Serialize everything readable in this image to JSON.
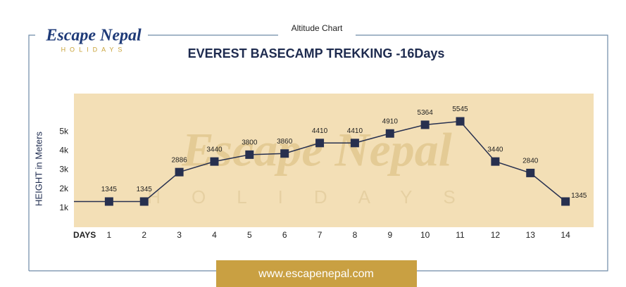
{
  "page": {
    "frame_title": "Altitude Chart",
    "logo": {
      "name": "Escape Nepal",
      "tagline": "HOLIDAYS"
    },
    "footer": "www.escapenepal.com"
  },
  "chart_data": {
    "type": "line",
    "title": "EVEREST BASECAMP TREKKING -16Days",
    "y_label": "HEIGHT in Meters",
    "x_label": "DAYS",
    "x": [
      1,
      2,
      3,
      4,
      5,
      6,
      7,
      8,
      9,
      10,
      11,
      12,
      13,
      14
    ],
    "values": [
      1345,
      1345,
      2886,
      3440,
      3800,
      3860,
      4410,
      4410,
      4910,
      5364,
      5545,
      3440,
      2840,
      1345
    ],
    "color": "#27304f",
    "xlim": [
      0,
      14.8
    ],
    "xticks": [
      1,
      2,
      3,
      4,
      5,
      6,
      7,
      8,
      9,
      10,
      11,
      12,
      13,
      14
    ],
    "ylim": [
      0,
      7000
    ],
    "yticks": [
      {
        "value": 1000,
        "label": "1k"
      },
      {
        "value": 2000,
        "label": "2k"
      },
      {
        "value": 3000,
        "label": "3k"
      },
      {
        "value": 4000,
        "label": "4k"
      },
      {
        "value": 5000,
        "label": "5k"
      }
    ]
  }
}
